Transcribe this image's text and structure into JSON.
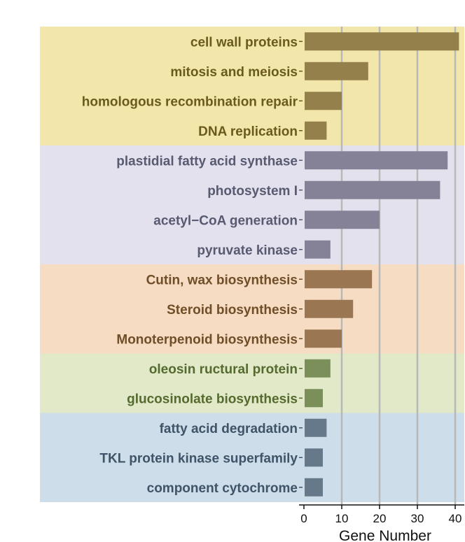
{
  "chart_data": {
    "type": "bar",
    "orientation": "horizontal",
    "xlabel": "Gene Number",
    "ylabel": "",
    "xlim": [
      -1.5,
      42
    ],
    "xticks": [
      0,
      10,
      20,
      30,
      40
    ],
    "grid": true,
    "groups": [
      {
        "bg": "#f3e6ab",
        "text": "#6b5a1e",
        "bar": "#93804a",
        "tick": "#6b5a1e"
      },
      {
        "bg": "#e4e1ee",
        "text": "#575a70",
        "bar": "#858297",
        "tick": "#575a70"
      },
      {
        "bg": "#f6dcc3",
        "text": "#6f4e28",
        "bar": "#9a7652",
        "tick": "#6f4e28"
      },
      {
        "bg": "#e1e9c8",
        "text": "#556a2e",
        "bar": "#7a8f5a",
        "tick": "#556a2e"
      },
      {
        "bg": "#cddde9",
        "text": "#3f5468",
        "bar": "#66798b",
        "tick": "#3f5468"
      }
    ],
    "categories": [
      "cell wall proteins",
      "mitosis and meiosis",
      "homologous recombination repair",
      "DNA replication",
      "plastidial fatty acid synthase",
      "photosystem I",
      "acetyl−CoA generation",
      "pyruvate kinase",
      "Cutin, wax biosynthesis",
      "Steroid biosynthesis",
      "Monoterpenoid biosynthesis",
      "oleosin ructural protein",
      "glucosinolate biosynthesis",
      "fatty acid degradation",
      "TKL protein kinase superfamily",
      "component cytochrome"
    ],
    "values": [
      41,
      17,
      10,
      6,
      38,
      36,
      20,
      7,
      18,
      13,
      10,
      7,
      5,
      6,
      5,
      5
    ],
    "category_group": [
      0,
      0,
      0,
      0,
      1,
      1,
      1,
      1,
      2,
      2,
      2,
      3,
      3,
      4,
      4,
      4
    ]
  }
}
